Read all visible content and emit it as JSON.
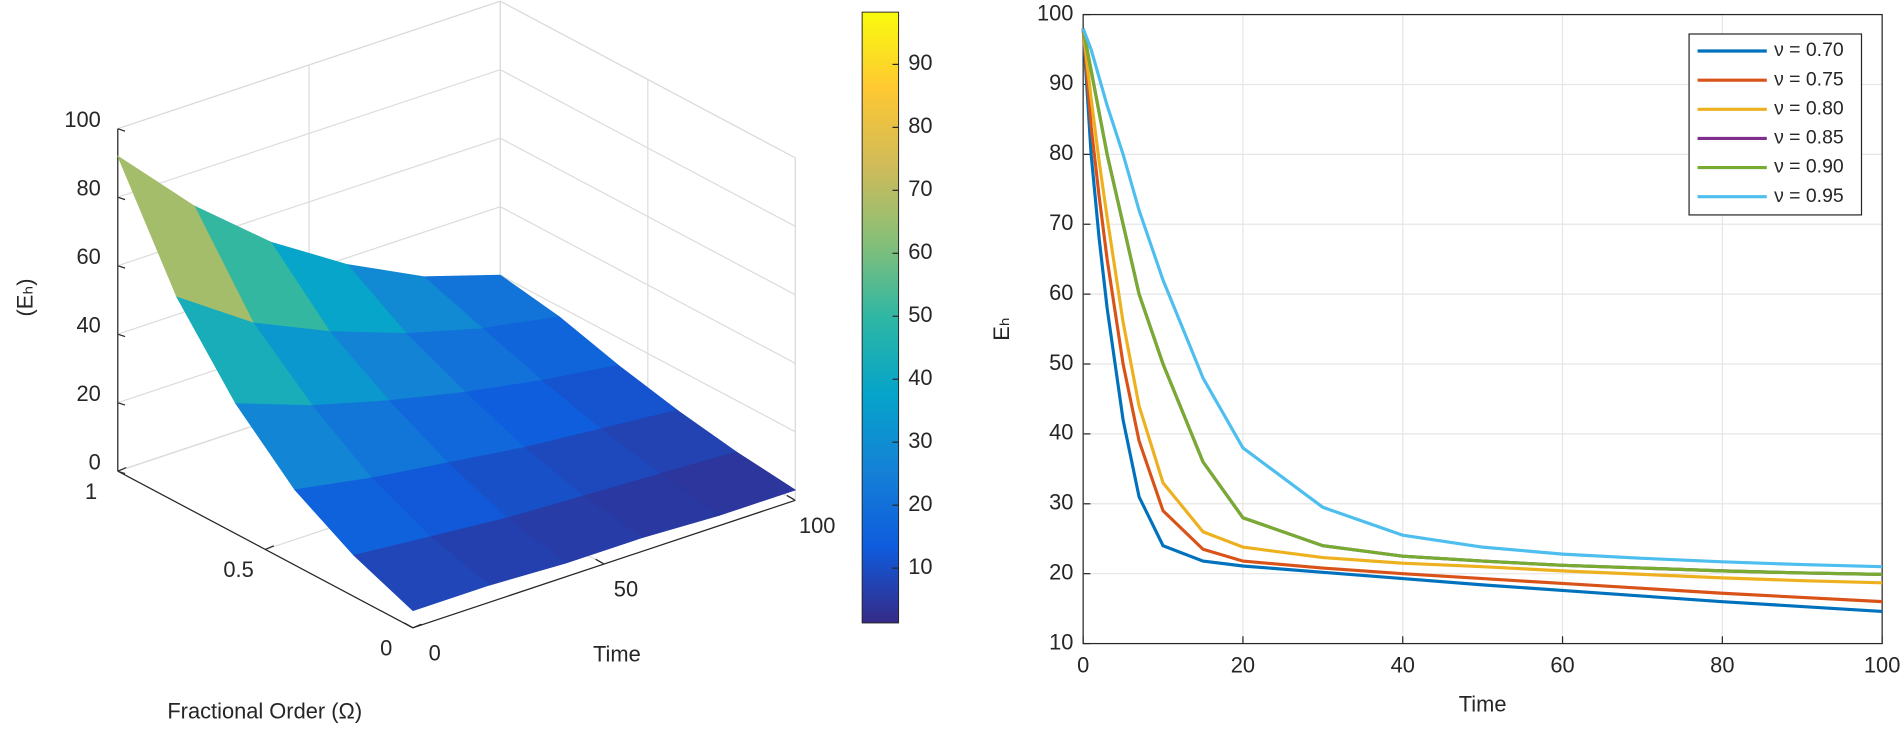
{
  "chart_data": [
    {
      "type": "surface",
      "xlabel": "Fractional Order (Ω)",
      "ylabel": "Time",
      "zlabel": "(Eₕ)",
      "x": [
        0,
        0.2,
        0.4,
        0.6,
        0.8,
        1
      ],
      "y": [
        0,
        20,
        40,
        60,
        80,
        100
      ],
      "z": [
        [
          5,
          5,
          4,
          4,
          3,
          3
        ],
        [
          12,
          10,
          8,
          7,
          6,
          5
        ],
        [
          22,
          18,
          15,
          12,
          10,
          8
        ],
        [
          38,
          30,
          24,
          19,
          15,
          12
        ],
        [
          60,
          45,
          35,
          27,
          21,
          17
        ],
        [
          92,
          70,
          52,
          38,
          27,
          20
        ]
      ],
      "xlim": [
        0,
        1
      ],
      "xticks": [
        0,
        0.5,
        1
      ],
      "ylim": [
        0,
        100
      ],
      "yticks": [
        0,
        50,
        100
      ],
      "zlim": [
        0,
        100
      ],
      "zticks": [
        0,
        20,
        40,
        60,
        80,
        100
      ],
      "clim": [
        1.3,
        98.3
      ],
      "cticks": [
        10,
        20,
        30,
        40,
        50,
        60,
        70,
        80,
        90
      ],
      "colormap": [
        "#352a87",
        "#0f5cdd",
        "#1481d6",
        "#06a4ca",
        "#2eb7a4",
        "#87bf77",
        "#d1bb59",
        "#fec832",
        "#f9fb0e"
      ],
      "grid": true
    },
    {
      "type": "line",
      "xlabel": "Time",
      "ylabel": "Eₕ",
      "x": [
        0,
        1,
        2,
        3,
        5,
        7,
        10,
        15,
        20,
        30,
        40,
        50,
        60,
        70,
        80,
        90,
        100
      ],
      "series": [
        {
          "name": "ν = 0.70",
          "color": "#0072bd",
          "values": [
            98,
            80,
            68,
            58,
            42,
            31,
            24,
            21.8,
            21.1,
            20.2,
            19.3,
            18.4,
            17.6,
            16.8,
            16,
            15.3,
            14.6
          ]
        },
        {
          "name": "ν = 0.75",
          "color": "#d95319",
          "values": [
            98,
            84,
            74,
            65,
            50,
            39,
            29,
            23.5,
            21.8,
            20.8,
            20,
            19.3,
            18.6,
            17.9,
            17.2,
            16.6,
            16
          ]
        },
        {
          "name": "ν = 0.80",
          "color": "#edb120",
          "values": [
            98,
            88,
            79,
            71,
            56,
            44,
            33,
            26,
            23.8,
            22.3,
            21.5,
            21,
            20.4,
            19.9,
            19.4,
            19,
            18.7
          ]
        },
        {
          "name": "ν = 0.85",
          "color": "#7e2f8e",
          "values": [
            98,
            92,
            86,
            80,
            70,
            60,
            50,
            36,
            28,
            24,
            22.5,
            21.8,
            21.2,
            20.8,
            20.4,
            20.1,
            19.9
          ]
        },
        {
          "name": "ν = 0.90",
          "color": "#77ac30",
          "values": [
            98,
            92,
            86,
            80,
            70,
            60,
            50,
            36,
            28,
            24,
            22.5,
            21.8,
            21.2,
            20.8,
            20.4,
            20.1,
            19.9
          ]
        },
        {
          "name": "ν = 0.95",
          "color": "#4dbeee",
          "values": [
            98,
            95,
            91,
            87,
            80,
            72,
            62,
            48,
            38,
            29.5,
            25.5,
            23.8,
            22.8,
            22.2,
            21.7,
            21.3,
            21
          ]
        }
      ],
      "xlim": [
        0,
        100
      ],
      "xticks": [
        0,
        20,
        40,
        60,
        80,
        100
      ],
      "ylim": [
        10,
        100
      ],
      "yticks": [
        10,
        20,
        30,
        40,
        50,
        60,
        70,
        80,
        90,
        100
      ],
      "grid": true,
      "legend": "northeast"
    }
  ]
}
